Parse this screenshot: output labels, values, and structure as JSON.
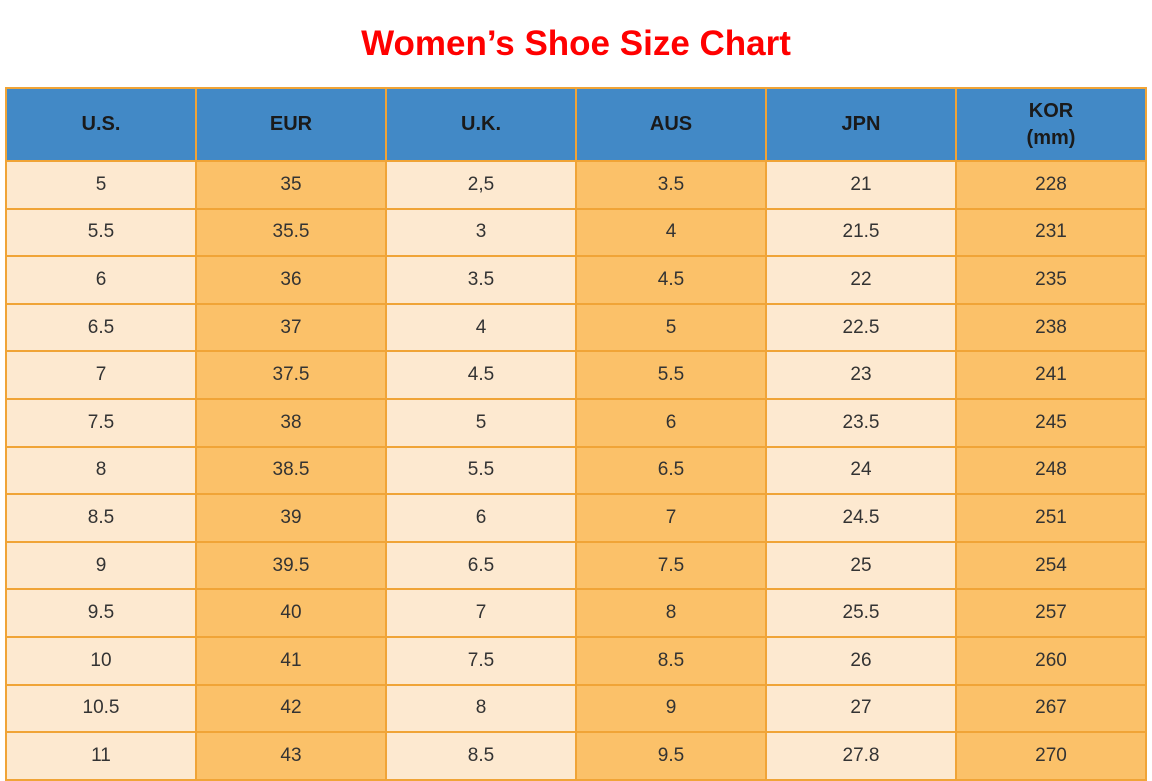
{
  "page": {
    "title": "Women’s Shoe Size Chart"
  },
  "colors": {
    "title_red": "#FF0000",
    "header_blue": "#4289C6",
    "border_orange": "#F0A437",
    "cell_cream": "#FDE9D0",
    "cell_orange": "#FBC169",
    "header_text": "#1A1A1A",
    "body_text": "#333333"
  },
  "chart_data": {
    "type": "table",
    "title": "Women’s Shoe Size Chart",
    "columns": [
      "U.S.",
      "EUR",
      "U.K.",
      "AUS",
      "JPN",
      "KOR\n(mm)"
    ],
    "rows": [
      [
        "5",
        "35",
        "2,5",
        "3.5",
        "21",
        "228"
      ],
      [
        "5.5",
        "35.5",
        "3",
        "4",
        "21.5",
        "231"
      ],
      [
        "6",
        "36",
        "3.5",
        "4.5",
        "22",
        "235"
      ],
      [
        "6.5",
        "37",
        "4",
        "5",
        "22.5",
        "238"
      ],
      [
        "7",
        "37.5",
        "4.5",
        "5.5",
        "23",
        "241"
      ],
      [
        "7.5",
        "38",
        "5",
        "6",
        "23.5",
        "245"
      ],
      [
        "8",
        "38.5",
        "5.5",
        "6.5",
        "24",
        "248"
      ],
      [
        "8.5",
        "39",
        "6",
        "7",
        "24.5",
        "251"
      ],
      [
        "9",
        "39.5",
        "6.5",
        "7.5",
        "25",
        "254"
      ],
      [
        "9.5",
        "40",
        "7",
        "8",
        "25.5",
        "257"
      ],
      [
        "10",
        "41",
        "7.5",
        "8.5",
        "26",
        "260"
      ],
      [
        "10.5",
        "42",
        "8",
        "9",
        "27",
        "267"
      ],
      [
        "11",
        "43",
        "8.5",
        "9.5",
        "27.8",
        "270"
      ]
    ]
  }
}
